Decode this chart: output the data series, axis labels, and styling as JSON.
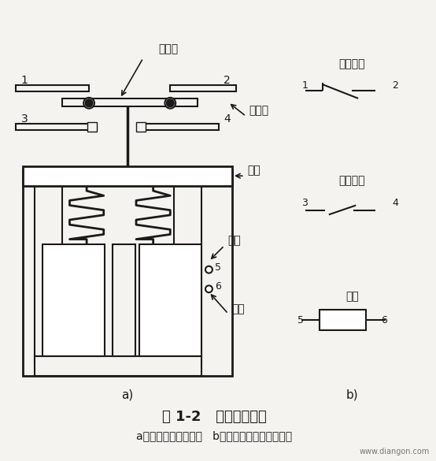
{
  "bg_color": "#f5f3ef",
  "line_color": "#1a1a1a",
  "title": "图 1-2   继电器示意图",
  "subtitle": "a）继电器结构示意图   b）继电器组成的电路符号",
  "watermark": "www.diangon.com",
  "label_a": "a)",
  "label_b": "b)",
  "text_dongjudian": "动触点",
  "text_jingjudian": "静触点",
  "text_hengti": "衔铁",
  "text_tiexin": "铁心",
  "text_xiaquan": "线圈",
  "text_changbi": "常闭触点",
  "text_changkai": "常开触点",
  "text_xiaquan_b": "线圈"
}
